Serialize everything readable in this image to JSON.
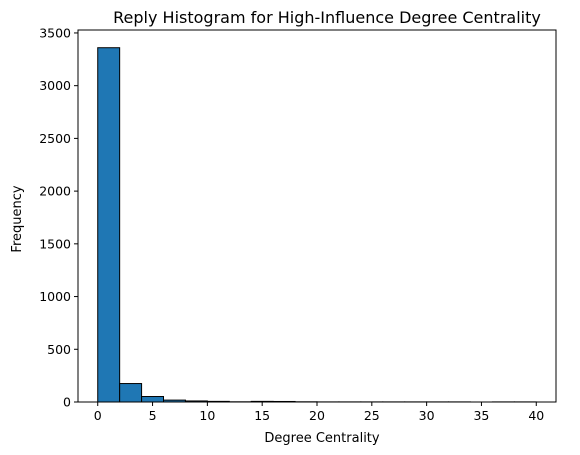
{
  "chart_data": {
    "type": "bar",
    "title": "Reply Histogram for High-Influence Degree Centrality",
    "xlabel": "Degree Centrality",
    "ylabel": "Frequency",
    "bin_edges": [
      0,
      2,
      4,
      6,
      8,
      10,
      12,
      14,
      16,
      18,
      20,
      22,
      24,
      26,
      28,
      30,
      32,
      34,
      36,
      38,
      40
    ],
    "values": [
      3360,
      175,
      52,
      18,
      10,
      6,
      2,
      6,
      5,
      2,
      1,
      1,
      1,
      1,
      1,
      1,
      1,
      0,
      1,
      1
    ],
    "xlim": [
      -1.8,
      41.8
    ],
    "ylim": [
      0,
      3528
    ],
    "xticks": [
      0,
      5,
      10,
      15,
      20,
      25,
      30,
      35,
      40
    ],
    "xtick_labels": [
      "0",
      "5",
      "10",
      "15",
      "20",
      "25",
      "30",
      "35",
      "40"
    ],
    "yticks": [
      0,
      500,
      1000,
      1500,
      2000,
      2500,
      3000,
      3500
    ],
    "ytick_labels": [
      "0",
      "500",
      "1000",
      "1500",
      "2000",
      "2500",
      "3000",
      "3500"
    ],
    "bar_color": "#1f77b4",
    "edge_color": "#000000",
    "grid": false,
    "legend": "none"
  }
}
